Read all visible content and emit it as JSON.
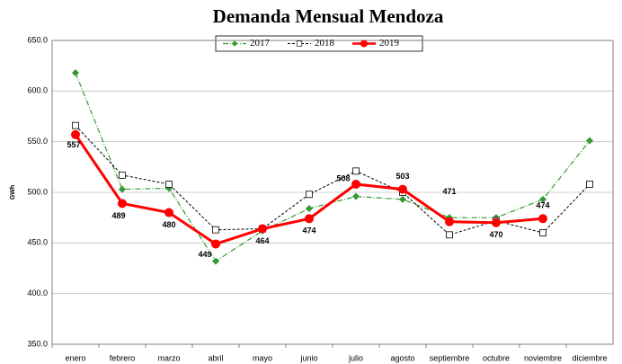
{
  "chart_data": {
    "type": "line",
    "title": "Demanda Mensual Mendoza",
    "y_label": "GWh",
    "categories": [
      "enero",
      "febrero",
      "marzo",
      "abril",
      "mayo",
      "junio",
      "julio",
      "agosto",
      "septiembre",
      "octubre",
      "noviembre",
      "diciembre"
    ],
    "series": [
      {
        "name": "2017",
        "color": "#339933",
        "values": [
          618,
          503,
          504,
          432,
          462,
          484,
          496,
          493,
          475,
          475,
          493,
          551
        ]
      },
      {
        "name": "2018",
        "color": "#000000",
        "values": [
          566,
          517,
          508,
          463,
          464,
          498,
          521,
          500,
          458,
          472,
          460,
          508
        ]
      },
      {
        "name": "2019",
        "color": "#ff0000",
        "values": [
          557,
          489,
          480,
          449,
          464,
          474,
          508,
          503,
          471,
          470,
          474,
          null
        ]
      }
    ],
    "ylim": [
      350,
      650
    ],
    "yticks": [
      {
        "value": 350,
        "label": "350.0"
      },
      {
        "value": 400,
        "label": "400.0"
      },
      {
        "value": 450,
        "label": "450.0"
      },
      {
        "value": 500,
        "label": "500.0"
      },
      {
        "value": 550,
        "label": "550.0"
      },
      {
        "value": 600,
        "label": "600.0"
      },
      {
        "value": 650,
        "label": "650.0"
      }
    ],
    "grid": true,
    "legend": "top"
  }
}
